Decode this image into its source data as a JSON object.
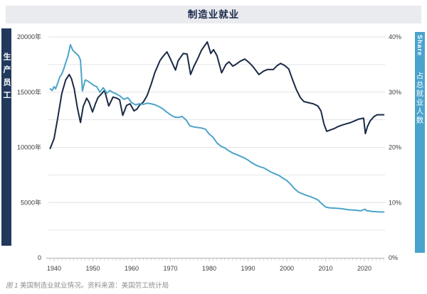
{
  "title": "制造业就业",
  "left_axis_bar": {
    "label": "生产员工"
  },
  "right_axis_bar": {
    "label_en": "Share",
    "label_zh": "占总就业人数"
  },
  "caption": {
    "figure_label": "图 1",
    "text": " 美国制造业就业情况。",
    "source": "资料来源：美国劳工统计局"
  },
  "colors": {
    "title_bg": "#e9ebee",
    "title_text": "#1b2a4c",
    "left_bar": "#21395d",
    "right_bar": "#4aa3cd",
    "employment_line": "#1a2a45",
    "share_line": "#4da4c9",
    "grid": "#e2e4e6",
    "axis": "#b3b3b3",
    "tick": "#c9c9c9",
    "axis_label": "#3c3c3c",
    "caption_text": "#8f8f8f"
  },
  "chart_data": {
    "type": "line",
    "title": "制造业就业",
    "legend_position": "side-bars",
    "grid": "minor horizontal gridlines every 2500 (left) / 5% (right)",
    "left_axis": {
      "title": "生产员工",
      "labels": [
        "20000年",
        "15000年",
        "10000年",
        "5000年",
        "0"
      ],
      "label_values": [
        20000,
        15000,
        10000,
        5000,
        0
      ],
      "range": [
        0,
        20000
      ],
      "gridline_step": 2500
    },
    "right_axis": {
      "title": "占总就业人数 (Share)",
      "labels": [
        "40%",
        "30%",
        "20%",
        "10%",
        "0%"
      ],
      "label_values": [
        40,
        30,
        20,
        10,
        0
      ],
      "range": [
        0,
        40
      ],
      "gridline_step": 5
    },
    "x_axis": {
      "labels": [
        "1940",
        "1950",
        "1960",
        "1970",
        "1980",
        "1990",
        "2000",
        "2010",
        "2020"
      ],
      "range": [
        1938,
        2025.5
      ],
      "minor_tick_step_years": 1
    },
    "series": [
      {
        "name": "生产员工",
        "axis": "left",
        "units": "thousands",
        "color": "#1a2a45",
        "points": [
          [
            1939,
            9900
          ],
          [
            1940,
            10800
          ],
          [
            1941,
            12800
          ],
          [
            1942,
            14900
          ],
          [
            1943,
            16100
          ],
          [
            1943.9,
            16600
          ],
          [
            1944.5,
            16200
          ],
          [
            1945.2,
            15300
          ],
          [
            1946,
            13600
          ],
          [
            1946.8,
            12250
          ],
          [
            1947.5,
            13700
          ],
          [
            1948.4,
            14450
          ],
          [
            1949,
            14100
          ],
          [
            1949.9,
            13200
          ],
          [
            1950.6,
            13900
          ],
          [
            1951.3,
            14500
          ],
          [
            1952.1,
            14800
          ],
          [
            1953,
            15150
          ],
          [
            1954.1,
            13750
          ],
          [
            1955.2,
            14550
          ],
          [
            1956.2,
            14450
          ],
          [
            1956.9,
            14300
          ],
          [
            1957.7,
            12900
          ],
          [
            1958.7,
            13800
          ],
          [
            1959.6,
            13950
          ],
          [
            1960.6,
            13300
          ],
          [
            1961.3,
            13450
          ],
          [
            1962,
            13800
          ],
          [
            1963,
            14100
          ],
          [
            1964,
            14700
          ],
          [
            1965,
            15700
          ],
          [
            1966,
            16800
          ],
          [
            1967.3,
            17850
          ],
          [
            1968,
            18200
          ],
          [
            1969.1,
            18650
          ],
          [
            1970,
            18000
          ],
          [
            1971.3,
            17000
          ],
          [
            1972,
            17850
          ],
          [
            1973.3,
            18500
          ],
          [
            1974.3,
            18450
          ],
          [
            1975.2,
            16600
          ],
          [
            1976,
            17300
          ],
          [
            1977,
            18000
          ],
          [
            1978,
            18800
          ],
          [
            1979.5,
            19550
          ],
          [
            1980.4,
            18500
          ],
          [
            1981.1,
            18850
          ],
          [
            1982,
            18300
          ],
          [
            1983.2,
            16750
          ],
          [
            1984.3,
            17500
          ],
          [
            1985.1,
            17750
          ],
          [
            1986.1,
            17350
          ],
          [
            1987,
            17550
          ],
          [
            1988,
            17800
          ],
          [
            1989.2,
            18000
          ],
          [
            1990.2,
            17700
          ],
          [
            1991.2,
            17350
          ],
          [
            1992.8,
            16600
          ],
          [
            1994,
            16900
          ],
          [
            1995,
            17050
          ],
          [
            1996.5,
            17050
          ],
          [
            1997.5,
            17400
          ],
          [
            1998.4,
            17600
          ],
          [
            1999.5,
            17400
          ],
          [
            2000.5,
            17100
          ],
          [
            2001.5,
            16100
          ],
          [
            2002.5,
            15200
          ],
          [
            2003.5,
            14500
          ],
          [
            2004.4,
            14150
          ],
          [
            2005.5,
            14050
          ],
          [
            2006.8,
            13950
          ],
          [
            2008,
            13750
          ],
          [
            2008.8,
            13300
          ],
          [
            2009.6,
            12100
          ],
          [
            2010.3,
            11450
          ],
          [
            2011,
            11550
          ],
          [
            2012.2,
            11700
          ],
          [
            2013,
            11850
          ],
          [
            2014.1,
            12000
          ],
          [
            2015.5,
            12150
          ],
          [
            2016.5,
            12250
          ],
          [
            2017.5,
            12400
          ],
          [
            2018.5,
            12550
          ],
          [
            2019.8,
            12650
          ],
          [
            2020.25,
            11250
          ],
          [
            2020.8,
            11900
          ],
          [
            2021.5,
            12400
          ],
          [
            2022.5,
            12800
          ],
          [
            2023.3,
            12950
          ],
          [
            2024.2,
            12950
          ],
          [
            2025,
            12950
          ]
        ]
      },
      {
        "name": "占总就业人数",
        "axis": "right",
        "units": "percent",
        "color": "#4da4c9",
        "points": [
          [
            1939,
            30.6
          ],
          [
            1939.5,
            30.3
          ],
          [
            1940,
            31.0
          ],
          [
            1940.4,
            30.6
          ],
          [
            1941,
            31.8
          ],
          [
            1941.5,
            32.8
          ],
          [
            1942,
            33.3
          ],
          [
            1942.5,
            34.2
          ],
          [
            1943,
            35.3
          ],
          [
            1943.6,
            36.6
          ],
          [
            1944.2,
            38.6
          ],
          [
            1944.8,
            37.6
          ],
          [
            1945.5,
            37.1
          ],
          [
            1946.3,
            36.6
          ],
          [
            1946.8,
            35.8
          ],
          [
            1947.3,
            30.2
          ],
          [
            1948,
            32.2
          ],
          [
            1948.7,
            32.0
          ],
          [
            1949.5,
            31.6
          ],
          [
            1950.3,
            31.2
          ],
          [
            1951,
            31.0
          ],
          [
            1951.8,
            30.0
          ],
          [
            1952.7,
            30.8
          ],
          [
            1953.6,
            29.8
          ],
          [
            1954.4,
            30.3
          ],
          [
            1955,
            30.0
          ],
          [
            1956,
            29.7
          ],
          [
            1957,
            29.3
          ],
          [
            1958,
            28.7
          ],
          [
            1959,
            29.0
          ],
          [
            1960,
            28.1
          ],
          [
            1961,
            27.7
          ],
          [
            1962,
            27.9
          ],
          [
            1963,
            27.8
          ],
          [
            1964,
            28.0
          ],
          [
            1965,
            27.9
          ],
          [
            1966,
            27.7
          ],
          [
            1967,
            27.4
          ],
          [
            1968,
            27.0
          ],
          [
            1969,
            26.4
          ],
          [
            1970,
            25.9
          ],
          [
            1971,
            25.5
          ],
          [
            1972,
            25.4
          ],
          [
            1973,
            25.6
          ],
          [
            1974,
            25.0
          ],
          [
            1975,
            23.9
          ],
          [
            1976,
            23.7
          ],
          [
            1977,
            23.6
          ],
          [
            1978,
            23.5
          ],
          [
            1979,
            23.3
          ],
          [
            1980,
            22.4
          ],
          [
            1981,
            21.8
          ],
          [
            1982,
            20.8
          ],
          [
            1983,
            20.2
          ],
          [
            1984,
            19.9
          ],
          [
            1985,
            19.4
          ],
          [
            1986,
            19.0
          ],
          [
            1987,
            18.7
          ],
          [
            1988,
            18.4
          ],
          [
            1989,
            18.1
          ],
          [
            1990,
            17.7
          ],
          [
            1991,
            17.2
          ],
          [
            1992,
            16.8
          ],
          [
            1993,
            16.5
          ],
          [
            1994,
            16.3
          ],
          [
            1995,
            15.9
          ],
          [
            1996,
            15.5
          ],
          [
            1997,
            15.2
          ],
          [
            1998,
            14.9
          ],
          [
            1999,
            14.4
          ],
          [
            2000,
            14.0
          ],
          [
            2001,
            13.3
          ],
          [
            2002,
            12.5
          ],
          [
            2003,
            11.9
          ],
          [
            2004,
            11.6
          ],
          [
            2005,
            11.3
          ],
          [
            2006,
            11.1
          ],
          [
            2007,
            10.8
          ],
          [
            2008,
            10.5
          ],
          [
            2009,
            9.8
          ],
          [
            2010,
            9.2
          ],
          [
            2011,
            9.05
          ],
          [
            2012,
            9.0
          ],
          [
            2013,
            8.95
          ],
          [
            2014,
            8.9
          ],
          [
            2015,
            8.8
          ],
          [
            2016,
            8.7
          ],
          [
            2017,
            8.65
          ],
          [
            2018,
            8.6
          ],
          [
            2019,
            8.5
          ],
          [
            2020.2,
            8.8
          ],
          [
            2020.6,
            8.5
          ],
          [
            2021,
            8.5
          ],
          [
            2022,
            8.4
          ],
          [
            2023,
            8.35
          ],
          [
            2024,
            8.3
          ],
          [
            2025,
            8.3
          ]
        ]
      }
    ]
  }
}
